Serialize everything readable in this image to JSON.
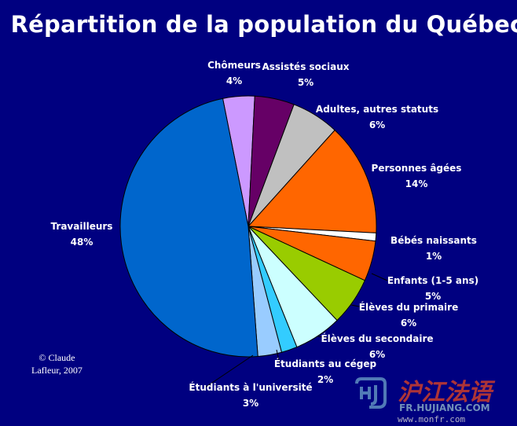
{
  "chart_data": {
    "type": "pie",
    "title": "Répartition de la population du Québec",
    "slices": [
      {
        "label": "Chômeurs",
        "value": 4,
        "value_label": "4%",
        "color": "#cc99ff"
      },
      {
        "label": "Assistés sociaux",
        "value": 5,
        "value_label": "5%",
        "color": "#660066"
      },
      {
        "label": "Adultes, autres statuts",
        "value": 6,
        "value_label": "6%",
        "color": "#c0c0c0"
      },
      {
        "label": "Personnes âgées",
        "value": 14,
        "value_label": "14%",
        "color": "#ff6600"
      },
      {
        "label": "Bébés naissants",
        "value": 1,
        "value_label": "1%",
        "color": "#ffffff"
      },
      {
        "label": "Enfants (1-5 ans)",
        "value": 5,
        "value_label": "5%",
        "color": "#ff6600"
      },
      {
        "label": "Élèves du primaire",
        "value": 6,
        "value_label": "6%",
        "color": "#99cc00"
      },
      {
        "label": "Élèves du secondaire",
        "value": 6,
        "value_label": "6%",
        "color": "#ccffff"
      },
      {
        "label": "Étudiants au cégep",
        "value": 2,
        "value_label": "2%",
        "color": "#33ccff"
      },
      {
        "label": "Étudiants à l'université",
        "value": 3,
        "value_label": "3%",
        "color": "#99ccff"
      },
      {
        "label": "Travailleurs",
        "value": 48,
        "value_label": "48%",
        "color": "#0066cc"
      }
    ]
  },
  "credit": {
    "line1": "© Claude",
    "line2": "Lafleur, 2007"
  },
  "watermark": {
    "brand": "沪江法语",
    "domain": "FR.HUJIANG.COM",
    "site": "www.monfr.com"
  }
}
